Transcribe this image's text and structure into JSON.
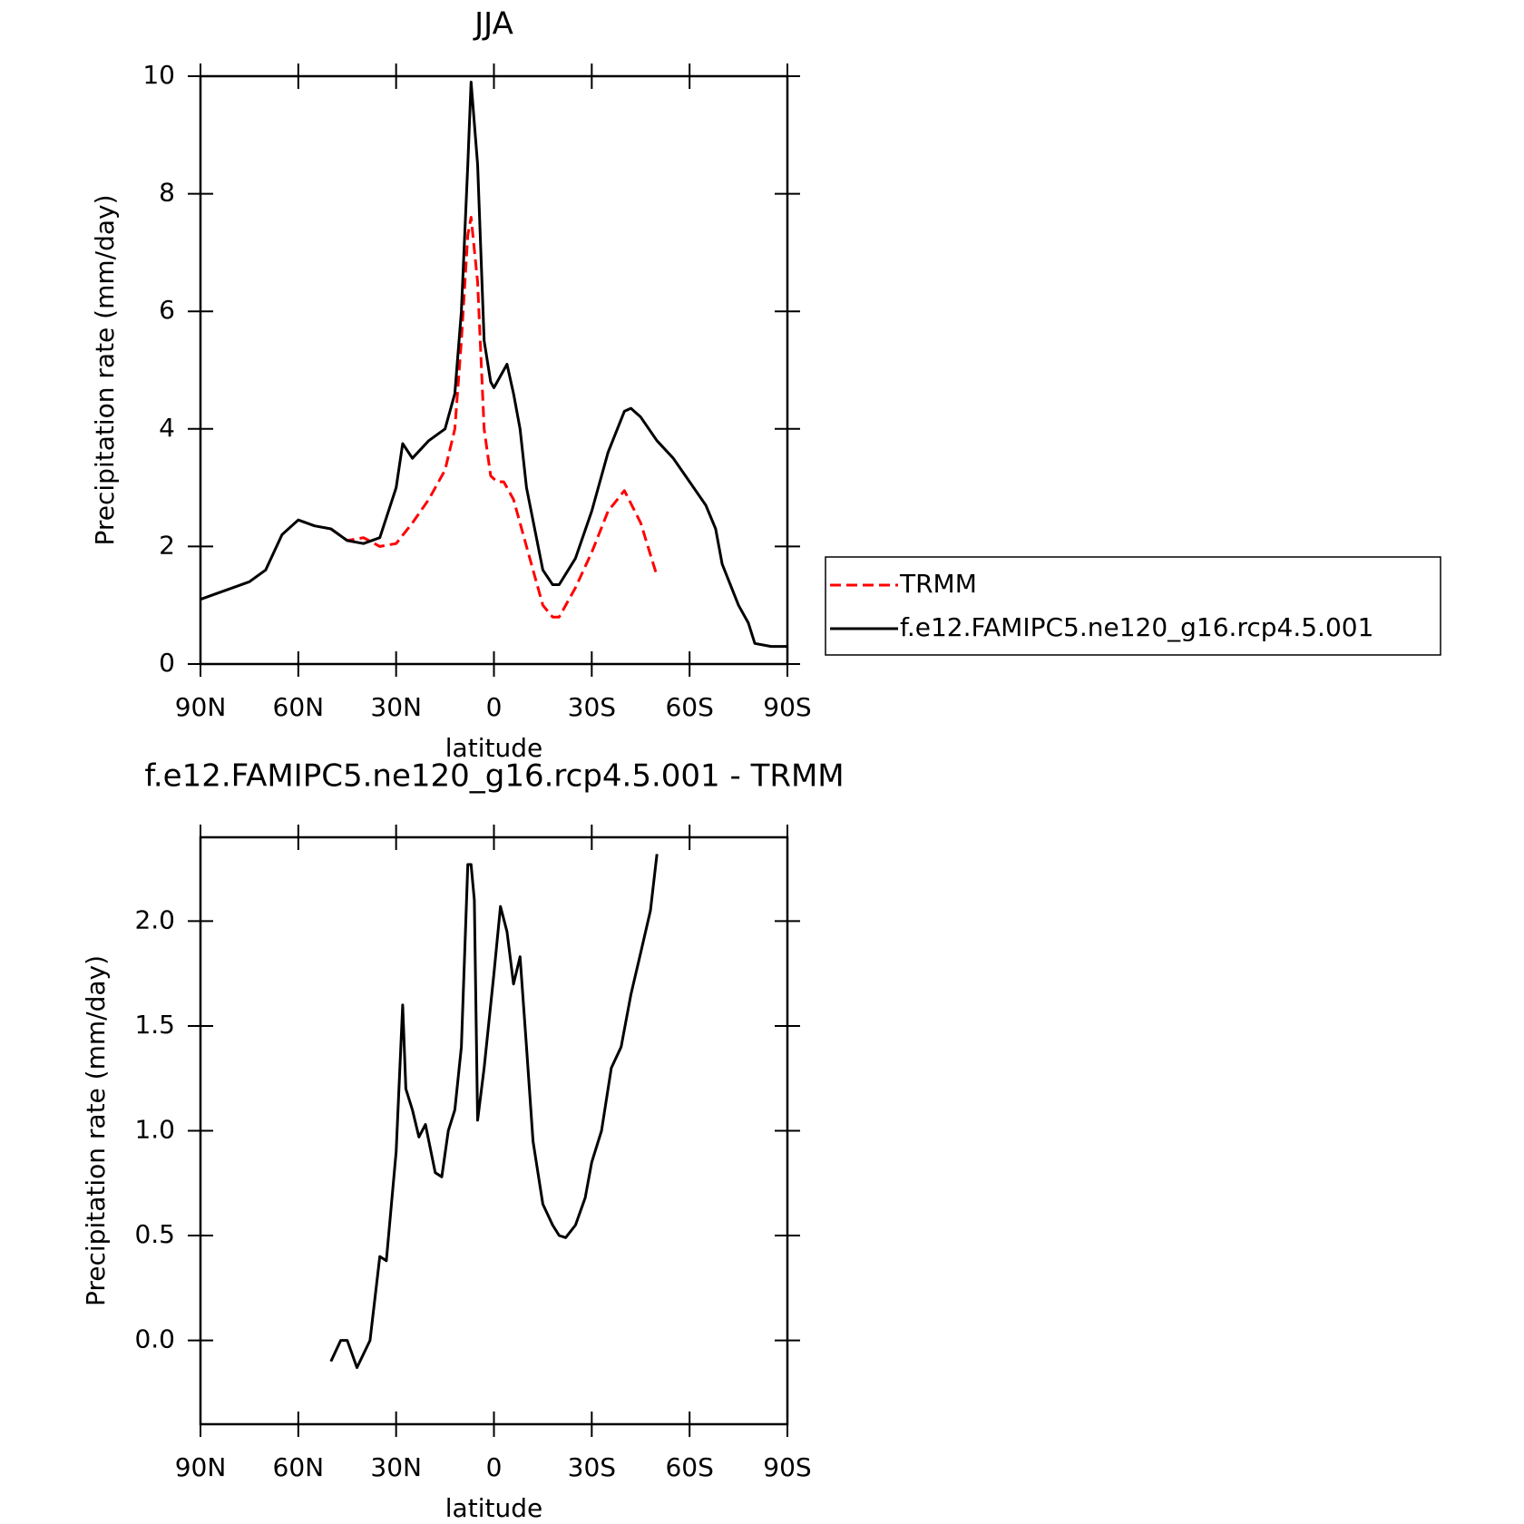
{
  "chart_data": [
    {
      "type": "line",
      "title": "JJA",
      "xlabel": "latitude",
      "ylabel": "Precipitation rate (mm/day)",
      "xlim": [
        90,
        -90
      ],
      "xticks": [
        {
          "value": 90,
          "label": "90N"
        },
        {
          "value": 60,
          "label": "60N"
        },
        {
          "value": 30,
          "label": "30N"
        },
        0,
        {
          "value": -30,
          "label": "30S"
        },
        {
          "value": -60,
          "label": "60S"
        },
        {
          "value": -90,
          "label": "90S"
        }
      ],
      "ylim": [
        0,
        10
      ],
      "yticks": [
        0,
        2,
        4,
        6,
        8,
        10
      ],
      "series": [
        {
          "name": "TRMM",
          "color": "#ff0000",
          "dashed": true,
          "x": [
            50,
            45,
            40,
            35,
            30,
            25,
            20,
            15,
            12,
            10,
            8,
            7,
            5,
            3,
            1,
            -1,
            -3,
            -6,
            -10,
            -15,
            -18,
            -20,
            -25,
            -30,
            -35,
            -40,
            -45,
            -50
          ],
          "values": [
            2.3,
            2.1,
            2.15,
            2.0,
            2.05,
            2.4,
            2.8,
            3.3,
            4.0,
            5.5,
            7.3,
            7.6,
            6.5,
            4.0,
            3.2,
            3.1,
            3.1,
            2.8,
            2.0,
            1.0,
            0.8,
            0.8,
            1.3,
            1.9,
            2.6,
            2.95,
            2.4,
            1.5
          ]
        },
        {
          "name": "f.e12.FAMIPC5.ne120_g16.rcp4.5.001",
          "color": "#000000",
          "dashed": false,
          "x": [
            90,
            85,
            80,
            75,
            70,
            65,
            62,
            60,
            55,
            50,
            45,
            40,
            35,
            30,
            28,
            25,
            20,
            15,
            12,
            10,
            8,
            7,
            5,
            3,
            1,
            0,
            -2,
            -4,
            -6,
            -8,
            -10,
            -15,
            -18,
            -20,
            -25,
            -30,
            -35,
            -40,
            -42,
            -45,
            -50,
            -55,
            -60,
            -65,
            -68,
            -70,
            -75,
            -78,
            -80,
            -85,
            -88,
            -90
          ],
          "values": [
            1.1,
            1.2,
            1.3,
            1.4,
            1.6,
            2.2,
            2.35,
            2.45,
            2.35,
            2.3,
            2.1,
            2.05,
            2.15,
            3.0,
            3.75,
            3.5,
            3.8,
            4.0,
            4.6,
            6.0,
            8.5,
            9.9,
            8.5,
            5.5,
            4.8,
            4.7,
            4.9,
            5.1,
            4.6,
            4.0,
            3.0,
            1.6,
            1.35,
            1.35,
            1.8,
            2.6,
            3.6,
            4.3,
            4.35,
            4.2,
            3.8,
            3.5,
            3.1,
            2.7,
            2.3,
            1.7,
            1.0,
            0.7,
            0.35,
            0.3,
            0.3,
            0.3
          ]
        }
      ]
    },
    {
      "type": "line",
      "title": "f.e12.FAMIPC5.ne120_g16.rcp4.5.001 - TRMM",
      "xlabel": "latitude",
      "ylabel": "Precipitation rate (mm/day)",
      "xlim": [
        90,
        -90
      ],
      "xticks": [
        {
          "value": 90,
          "label": "90N"
        },
        {
          "value": 60,
          "label": "60N"
        },
        {
          "value": 30,
          "label": "30N"
        },
        0,
        {
          "value": -30,
          "label": "30S"
        },
        {
          "value": -60,
          "label": "60S"
        },
        {
          "value": -90,
          "label": "90S"
        }
      ],
      "ylim": [
        -0.4,
        2.4
      ],
      "yticks": [
        {
          "value": 0,
          "label": "0.0"
        },
        0.5,
        {
          "value": 1,
          "label": "1.0"
        },
        1.5,
        {
          "value": 2,
          "label": "2.0"
        }
      ],
      "series": [
        {
          "color": "#000000",
          "dashed": false,
          "x": [
            50,
            47,
            45,
            42,
            38,
            35,
            33,
            30,
            28,
            27,
            25,
            23,
            21,
            18,
            16,
            14,
            12,
            10,
            8,
            7,
            6,
            5,
            3,
            0,
            -2,
            -4,
            -6,
            -8,
            -10,
            -12,
            -15,
            -18,
            -20,
            -22,
            -25,
            -28,
            -30,
            -33,
            -36,
            -39,
            -42,
            -45,
            -48,
            -50
          ],
          "values": [
            -0.1,
            0.0,
            0.0,
            -0.13,
            0.0,
            0.4,
            0.38,
            0.9,
            1.6,
            1.2,
            1.1,
            0.97,
            1.03,
            0.8,
            0.78,
            1.0,
            1.1,
            1.4,
            2.27,
            2.27,
            2.1,
            1.05,
            1.3,
            1.75,
            2.07,
            1.95,
            1.7,
            1.83,
            1.4,
            0.95,
            0.65,
            0.55,
            0.5,
            0.49,
            0.55,
            0.68,
            0.85,
            1.0,
            1.3,
            1.4,
            1.65,
            1.85,
            2.05,
            2.32
          ]
        }
      ]
    }
  ]
}
